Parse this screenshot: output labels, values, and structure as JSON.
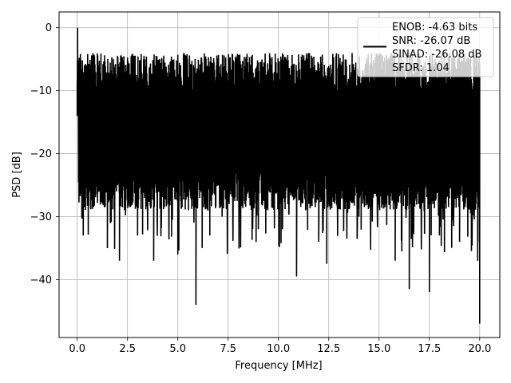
{
  "chart_data": {
    "type": "line",
    "title": "",
    "xlabel": "Frequency [MHz]",
    "ylabel": "PSD [dB]",
    "xlim": [
      -0.9,
      21.0
    ],
    "ylim": [
      -49.2,
      2.5
    ],
    "xticks": [
      0.0,
      2.5,
      5.0,
      7.5,
      10.0,
      12.5,
      15.0,
      17.5,
      20.0
    ],
    "xtick_labels": [
      "0.0",
      "2.5",
      "5.0",
      "7.5",
      "10.0",
      "12.5",
      "15.0",
      "17.5",
      "20.0"
    ],
    "yticks": [
      0,
      -10,
      -20,
      -30,
      -40
    ],
    "ytick_labels": [
      "0",
      "−10",
      "−20",
      "−30",
      "−40"
    ],
    "grid": true,
    "legend_position": "top-right",
    "series": [
      {
        "color": "#000000",
        "description_points": {
          "x": [
            0.0,
            0.02,
            0.05,
            0.1,
            0.3,
            0.6,
            1.0,
            1.5,
            2.0,
            2.1,
            2.5,
            3.0,
            3.3,
            3.8,
            4.2,
            5.0,
            5.3,
            5.9,
            6.5,
            7.2,
            8.0,
            9.0,
            9.8,
            10.2,
            10.9,
            11.5,
            12.0,
            12.4,
            13.0,
            14.0,
            15.0,
            15.8,
            16.5,
            17.0,
            17.5,
            18.0,
            18.5,
            19.0,
            19.5,
            19.9,
            20.0
          ],
          "y": [
            -14.0,
            0.0,
            -6.0,
            -23.0,
            -33.0,
            -13.0,
            -7.0,
            -35.0,
            -14.0,
            -37.0,
            -8.0,
            -33.0,
            -5.0,
            -37.0,
            -10.0,
            -36.0,
            -4.0,
            -44.0,
            -6.0,
            -30.0,
            -5.0,
            -32.0,
            -7.0,
            -32.0,
            -39.5,
            -8.0,
            -34.0,
            -37.5,
            -6.0,
            -30.0,
            -4.0,
            -37.0,
            -41.5,
            -8.0,
            -42.0,
            -33.0,
            -6.0,
            -34.0,
            -8.0,
            -37.0,
            -47.0
          ]
        },
        "envelope": {
          "top_mean": -7.0,
          "bottom_mean": -26.0
        }
      }
    ]
  },
  "legend": {
    "lines": [
      "ENOB: -4.63 bits",
      "SNR: -26.07 dB",
      "SINAD: -26.08 dB",
      "SFDR: 1.04"
    ]
  }
}
